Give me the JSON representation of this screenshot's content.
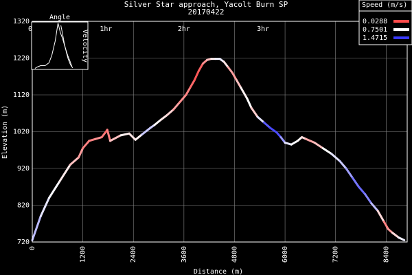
{
  "chart_data": {
    "type": "line",
    "title": "Silver Star approach, Yacolt Burn SP",
    "subtitle": "20170422",
    "xlabel": "Distance (m)",
    "ylabel": "Elevation (m)",
    "xlim": [
      0,
      8900
    ],
    "ylim": [
      720,
      1320
    ],
    "x_ticks": [
      "0",
      "1200",
      "2400",
      "3600",
      "4800",
      "6000",
      "7200",
      "8400"
    ],
    "y_ticks": [
      "720",
      "820",
      "920",
      "1020",
      "1120",
      "1220",
      "1320"
    ],
    "top_axis_ticks": [
      "0h",
      "1hr",
      "2hr",
      "3hr"
    ],
    "top_axis_distances": [
      0,
      1750,
      3600,
      5480
    ],
    "grid": true,
    "legend": {
      "title": "Speed (m/s)",
      "position": "top-right",
      "entries": [
        {
          "label": "0.0288",
          "color": "#ff4a4a"
        },
        {
          "label": "0.7501",
          "color": "#ffffff"
        },
        {
          "label": "1.4715",
          "color": "#3a3aff"
        }
      ]
    },
    "inset": {
      "labels": [
        "Angle",
        "Velocity"
      ],
      "trace_x": [
        0.06,
        0.1,
        0.16,
        0.24,
        0.31,
        0.36,
        0.42,
        0.47,
        0.51,
        0.55,
        0.6,
        0.64,
        0.68,
        0.72
      ],
      "trace_y": [
        0.02,
        0.05,
        0.08,
        0.08,
        0.14,
        0.3,
        0.6,
        0.98,
        0.78,
        0.65,
        0.45,
        0.3,
        0.18,
        0.05
      ],
      "trace2_x": [
        0.52,
        0.55,
        0.58,
        0.62,
        0.65,
        0.69,
        0.73
      ],
      "trace2_y": [
        0.93,
        0.75,
        0.55,
        0.35,
        0.22,
        0.1,
        0.03
      ]
    },
    "series": [
      {
        "x": [
          0,
          200,
          400,
          650,
          900,
          1100,
          1200,
          1350,
          1500,
          1650,
          1750,
          1780,
          1850,
          2100,
          2300,
          2450,
          2600,
          2800,
          2900,
          3050,
          3200,
          3350,
          3500,
          3650,
          3750,
          3850,
          3950,
          4050,
          4150,
          4250,
          4350,
          4450,
          4550,
          4650,
          4750,
          4850,
          4950,
          5100,
          5200,
          5350,
          5500,
          5650,
          5800,
          5900,
          6000,
          6150,
          6300,
          6400,
          6500,
          6700,
          6900,
          7100,
          7300,
          7450,
          7600,
          7750,
          7900,
          8050,
          8200,
          8350,
          8450,
          8550,
          8700,
          8830
        ],
        "y": [
          725,
          790,
          840,
          885,
          930,
          950,
          975,
          995,
          1000,
          1005,
          1020,
          1025,
          995,
          1010,
          1015,
          998,
          1012,
          1030,
          1038,
          1052,
          1065,
          1080,
          1100,
          1120,
          1140,
          1160,
          1185,
          1205,
          1215,
          1218,
          1218,
          1218,
          1210,
          1195,
          1180,
          1160,
          1140,
          1110,
          1085,
          1060,
          1045,
          1030,
          1018,
          1005,
          990,
          985,
          995,
          1005,
          1000,
          990,
          975,
          960,
          940,
          920,
          895,
          870,
          850,
          825,
          805,
          775,
          755,
          745,
          732,
          725
        ],
        "speed": [
          1.1,
          0.9,
          0.8,
          0.75,
          0.6,
          0.4,
          0.3,
          0.2,
          0.3,
          0.35,
          0.1,
          0.1,
          0.4,
          0.6,
          0.8,
          0.5,
          0.9,
          1.0,
          0.85,
          0.6,
          0.7,
          0.45,
          0.3,
          0.3,
          0.2,
          0.1,
          0.05,
          0.2,
          0.4,
          0.6,
          0.75,
          0.85,
          0.8,
          0.5,
          0.3,
          0.4,
          0.6,
          0.8,
          0.7,
          0.4,
          1.3,
          1.4,
          1.45,
          1.35,
          0.9,
          0.8,
          0.75,
          0.7,
          0.5,
          0.3,
          0.7,
          0.8,
          0.9,
          1.0,
          1.2,
          1.3,
          1.3,
          1.1,
          0.9,
          0.3,
          0.2,
          0.5,
          0.7,
          0.9
        ]
      }
    ]
  }
}
